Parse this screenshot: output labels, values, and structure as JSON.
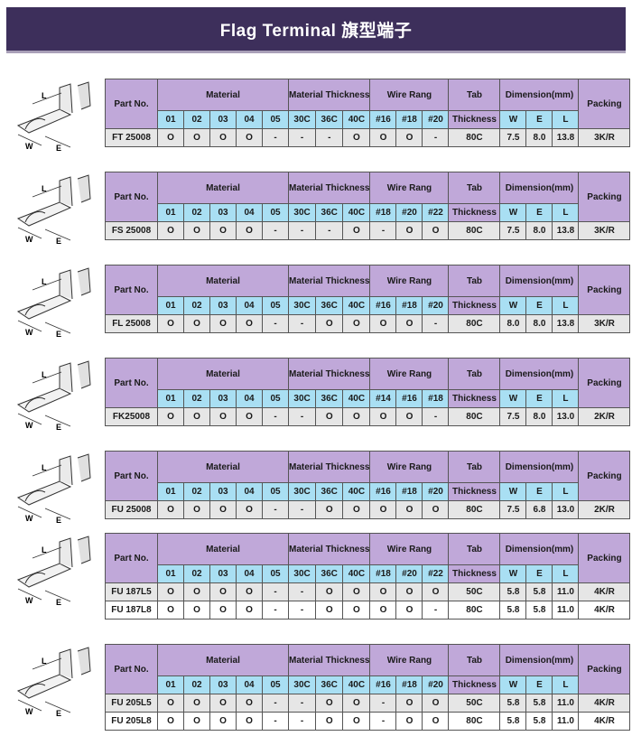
{
  "title": "Flag Terminal 旗型端子",
  "headers": {
    "part_no": "Part No.",
    "material": "Material",
    "material_thickness": "Material Thickness",
    "wire_rang": "Wire Rang",
    "tab": "Tab",
    "thickness": "Thickness",
    "dimension": "Dimension(mm)",
    "packing": "Packing"
  },
  "material_codes": [
    "01",
    "02",
    "03",
    "04",
    "05"
  ],
  "thickness_codes": [
    "30C",
    "36C",
    "40C"
  ],
  "dim_codes": [
    "W",
    "E",
    "L"
  ],
  "diagram_labels": {
    "l": "L",
    "w": "W",
    "e": "E"
  },
  "tables": [
    {
      "wire": [
        "#16",
        "#18",
        "#20"
      ],
      "rows": [
        [
          "FT 25008",
          "O",
          "O",
          "O",
          "O",
          "-",
          "-",
          "-",
          "O",
          "O",
          "O",
          "-",
          "80C",
          "7.5",
          "8.0",
          "13.8",
          "3K/R"
        ]
      ]
    },
    {
      "wire": [
        "#18",
        "#20",
        "#22"
      ],
      "rows": [
        [
          "FS 25008",
          "O",
          "O",
          "O",
          "O",
          "-",
          "-",
          "-",
          "O",
          "-",
          "O",
          "O",
          "80C",
          "7.5",
          "8.0",
          "13.8",
          "3K/R"
        ]
      ]
    },
    {
      "wire": [
        "#16",
        "#18",
        "#20"
      ],
      "rows": [
        [
          "FL 25008",
          "O",
          "O",
          "O",
          "O",
          "-",
          "-",
          "O",
          "O",
          "O",
          "O",
          "-",
          "80C",
          "8.0",
          "8.0",
          "13.8",
          "3K/R"
        ]
      ]
    },
    {
      "wire": [
        "#14",
        "#16",
        "#18"
      ],
      "rows": [
        [
          "FK25008",
          "O",
          "O",
          "O",
          "O",
          "-",
          "-",
          "O",
          "O",
          "O",
          "O",
          "-",
          "80C",
          "7.5",
          "8.0",
          "13.0",
          "2K/R"
        ]
      ]
    },
    {
      "wire": [
        "#16",
        "#18",
        "#20"
      ],
      "rows": [
        [
          "FU 25008",
          "O",
          "O",
          "O",
          "O",
          "-",
          "-",
          "O",
          "O",
          "O",
          "O",
          "O",
          "80C",
          "7.5",
          "6.8",
          "13.0",
          "2K/R"
        ]
      ]
    },
    {
      "wire": [
        "#18",
        "#20",
        "#22"
      ],
      "rows": [
        [
          "FU 187L5",
          "O",
          "O",
          "O",
          "O",
          "-",
          "-",
          "O",
          "O",
          "O",
          "O",
          "O",
          "50C",
          "5.8",
          "5.8",
          "11.0",
          "4K/R"
        ],
        [
          "FU 187L8",
          "O",
          "O",
          "O",
          "O",
          "-",
          "-",
          "O",
          "O",
          "O",
          "O",
          "-",
          "80C",
          "5.8",
          "5.8",
          "11.0",
          "4K/R"
        ]
      ]
    },
    {
      "wire": [
        "#16",
        "#18",
        "#20"
      ],
      "rows": [
        [
          "FU 205L5",
          "O",
          "O",
          "O",
          "O",
          "-",
          "-",
          "O",
          "O",
          "-",
          "O",
          "O",
          "50C",
          "5.8",
          "5.8",
          "11.0",
          "4K/R"
        ],
        [
          "FU 205L8",
          "O",
          "O",
          "O",
          "O",
          "-",
          "-",
          "O",
          "O",
          "-",
          "O",
          "O",
          "80C",
          "5.8",
          "5.8",
          "11.0",
          "4K/R"
        ]
      ]
    }
  ]
}
